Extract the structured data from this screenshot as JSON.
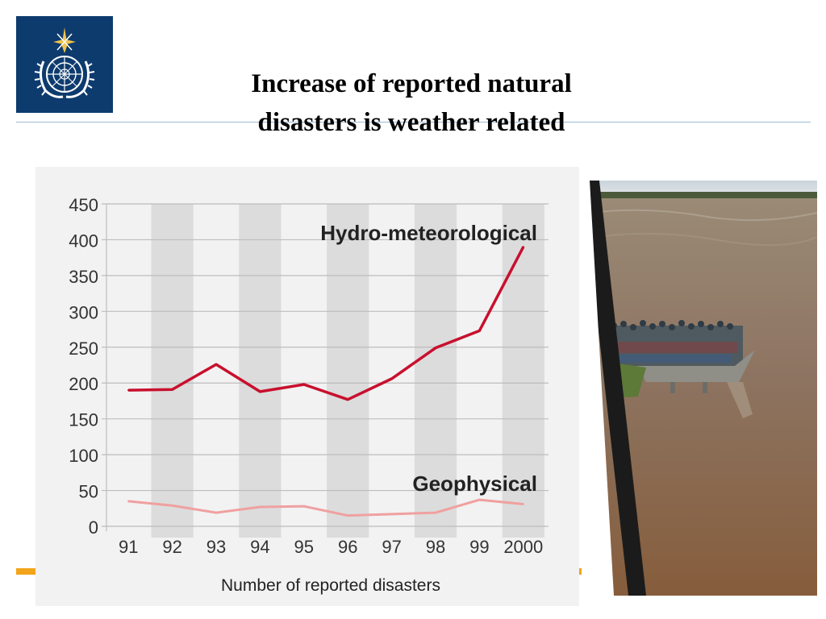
{
  "slide": {
    "title_line1": "Increase of reported natural",
    "title_line2": "disasters is weather related"
  },
  "colors": {
    "logo_bg": "#0d3b6e",
    "rule": "#9dbad3",
    "hydro_series": "#c8102e",
    "geo_series": "#f0a0a0",
    "chart_bg": "#f2f2f2",
    "accent_orange": "#f2a51a"
  },
  "chart_data": {
    "type": "line",
    "xlabel": "Number of reported disasters",
    "ylim": [
      0,
      450
    ],
    "yticks": [
      0,
      50,
      100,
      150,
      200,
      250,
      300,
      350,
      400,
      450
    ],
    "categories": [
      "91",
      "92",
      "93",
      "94",
      "95",
      "96",
      "97",
      "98",
      "99",
      "2000"
    ],
    "series": [
      {
        "name": "Hydro-meteorological",
        "values": [
          190,
          191,
          226,
          188,
          198,
          177,
          206,
          249,
          273,
          390
        ]
      },
      {
        "name": "Geophysical",
        "values": [
          35,
          29,
          19,
          27,
          28,
          15,
          17,
          19,
          37,
          31
        ]
      }
    ],
    "grid": true
  }
}
